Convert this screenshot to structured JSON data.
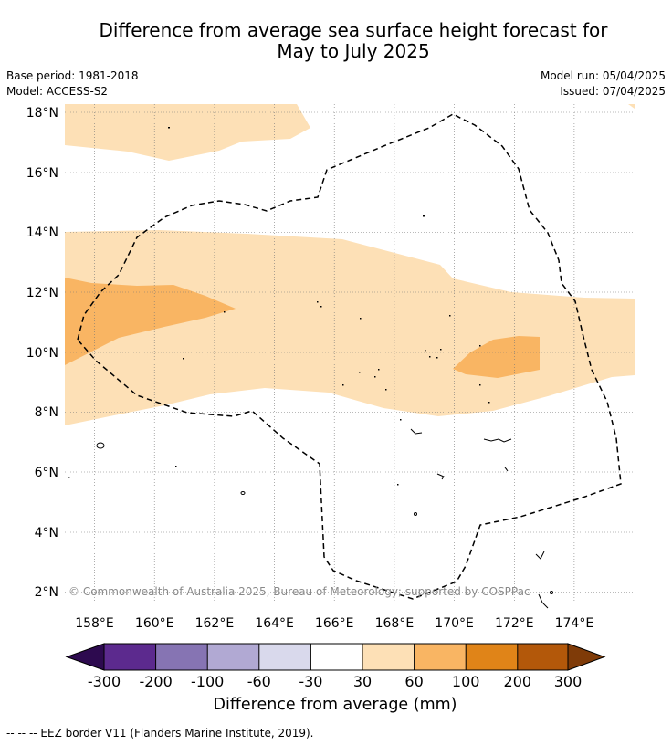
{
  "title": {
    "line1": "Difference from average sea surface height forecast for",
    "line2": "May to July 2025"
  },
  "meta": {
    "base_period": "Base period: 1981-2018",
    "model": "Model: ACCESS-S2",
    "model_run": "Model run: 05/04/2025",
    "issued": "Issued: 07/04/2025"
  },
  "map": {
    "lat_labels": [
      "18°N",
      "16°N",
      "14°N",
      "12°N",
      "10°N",
      "8°N",
      "6°N",
      "4°N",
      "2°N"
    ],
    "lon_labels": [
      "158°E",
      "160°E",
      "162°E",
      "164°E",
      "166°E",
      "168°E",
      "170°E",
      "172°E",
      "174°E"
    ],
    "lat_range": [
      1.5,
      18.4
    ],
    "lon_range": [
      157.0,
      176.0
    ],
    "copyright": "© Commonwealth of Australia 2025, Bureau of Meteorology; supported by COSPPac"
  },
  "colorbar": {
    "labels": [
      "-300",
      "-200",
      "-100",
      "-60",
      "-30",
      "30",
      "60",
      "100",
      "200",
      "300"
    ],
    "colors": [
      "#2d0a4f",
      "#5c2a8e",
      "#8674b3",
      "#b1a9d3",
      "#d9d9ec",
      "#ffffff",
      "#fde0b6",
      "#f9b563",
      "#e08418",
      "#b3580a",
      "#7f3b08"
    ],
    "title": "Difference from average (mm)"
  },
  "footnote": "--  --  -- EEZ border V11 (Flanders Marine Institute, 2019)."
}
